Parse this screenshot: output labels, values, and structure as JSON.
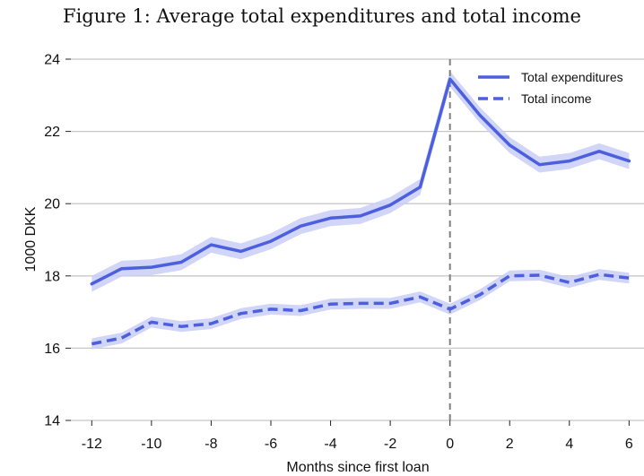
{
  "chart_data": {
    "type": "line",
    "title": "Figure 1: Average total expenditures and total income",
    "xlabel": "Months since first loan",
    "ylabel": "1000 DKK",
    "xlim": [
      -12.7,
      6.5
    ],
    "ylim": [
      14,
      24
    ],
    "xticks": [
      -12,
      -10,
      -8,
      -6,
      -4,
      -2,
      0,
      2,
      4,
      6
    ],
    "yticks": [
      14,
      16,
      18,
      20,
      22,
      24
    ],
    "grid": "horizontal",
    "legend": "top-right",
    "reference_line": {
      "x": 0,
      "style": "dashed",
      "color": "#808080"
    },
    "x": [
      -12,
      -11,
      -10,
      -9,
      -8,
      -7,
      -6,
      -5,
      -4,
      -3,
      -2,
      -1,
      0,
      1,
      2,
      3,
      4,
      5,
      6
    ],
    "series": [
      {
        "name": "Total expenditures",
        "style": "solid",
        "color": "#4c5fde",
        "band_color": "#c9cef6",
        "band_halfwidth": 0.22,
        "values": [
          17.78,
          18.2,
          18.24,
          18.38,
          18.86,
          18.68,
          18.96,
          19.38,
          19.6,
          19.66,
          19.96,
          20.46,
          23.45,
          22.45,
          21.62,
          21.08,
          21.18,
          21.45,
          21.18
        ]
      },
      {
        "name": "Total income",
        "style": "dashed",
        "color": "#4c5fde",
        "band_color": "#c9cef6",
        "band_halfwidth": 0.15,
        "values": [
          16.12,
          16.28,
          16.72,
          16.6,
          16.68,
          16.96,
          17.08,
          17.04,
          17.22,
          17.24,
          17.24,
          17.42,
          17.08,
          17.48,
          18.0,
          18.02,
          17.82,
          18.04,
          17.94
        ]
      }
    ]
  }
}
